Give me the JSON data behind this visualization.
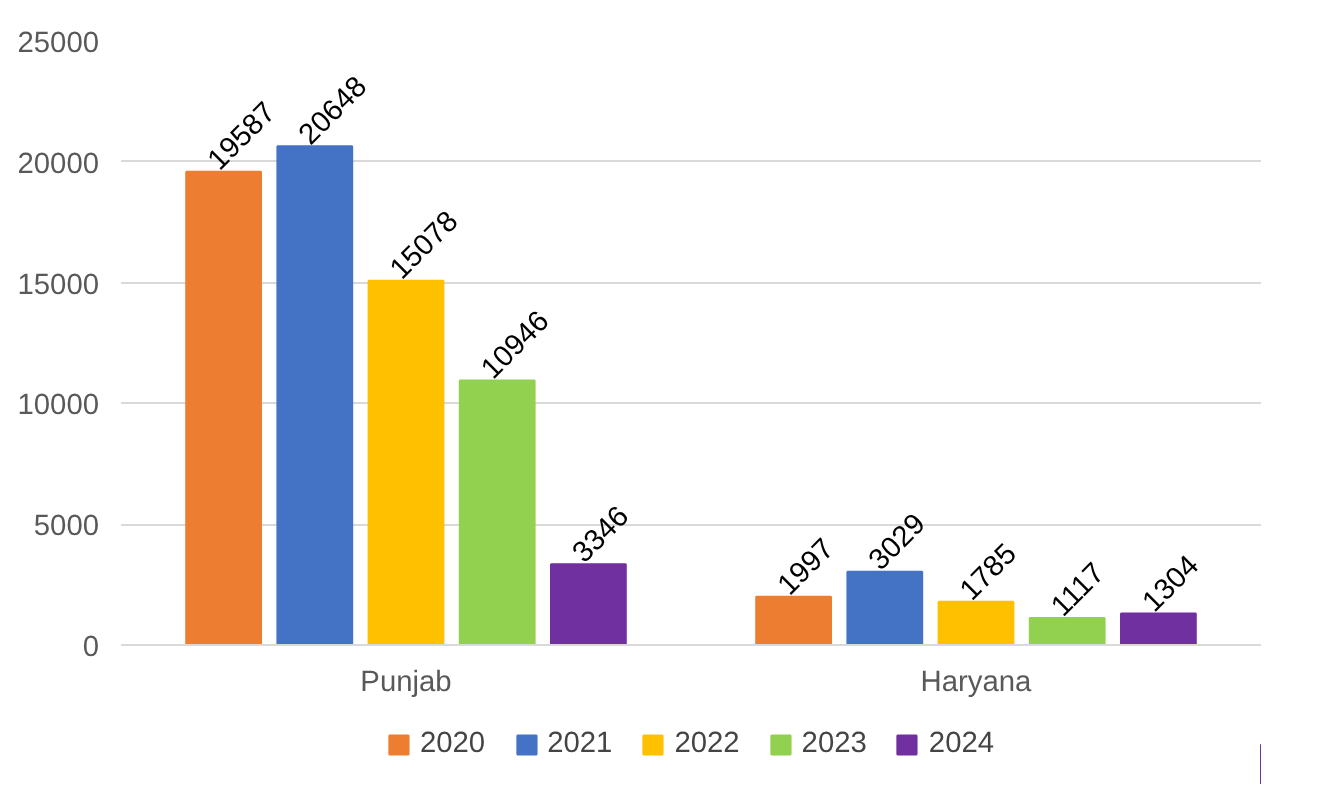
{
  "chart_data": {
    "type": "bar",
    "categories": [
      "Punjab",
      "Haryana"
    ],
    "series": [
      {
        "name": "2020",
        "color": "#ed7d31",
        "values": [
          19587,
          1997
        ]
      },
      {
        "name": "2021",
        "color": "#4472c4",
        "values": [
          20648,
          3029
        ]
      },
      {
        "name": "2022",
        "color": "#ffc000",
        "values": [
          15078,
          1785
        ]
      },
      {
        "name": "2023",
        "color": "#92d050",
        "values": [
          10946,
          1117
        ]
      },
      {
        "name": "2024",
        "color": "#7030a0",
        "values": [
          3346,
          1304
        ]
      }
    ],
    "ylim": [
      0,
      25000
    ],
    "yticks": [
      0,
      5000,
      10000,
      15000,
      20000,
      25000
    ],
    "grid": "y",
    "legend": "bottom",
    "data_labels": true
  }
}
